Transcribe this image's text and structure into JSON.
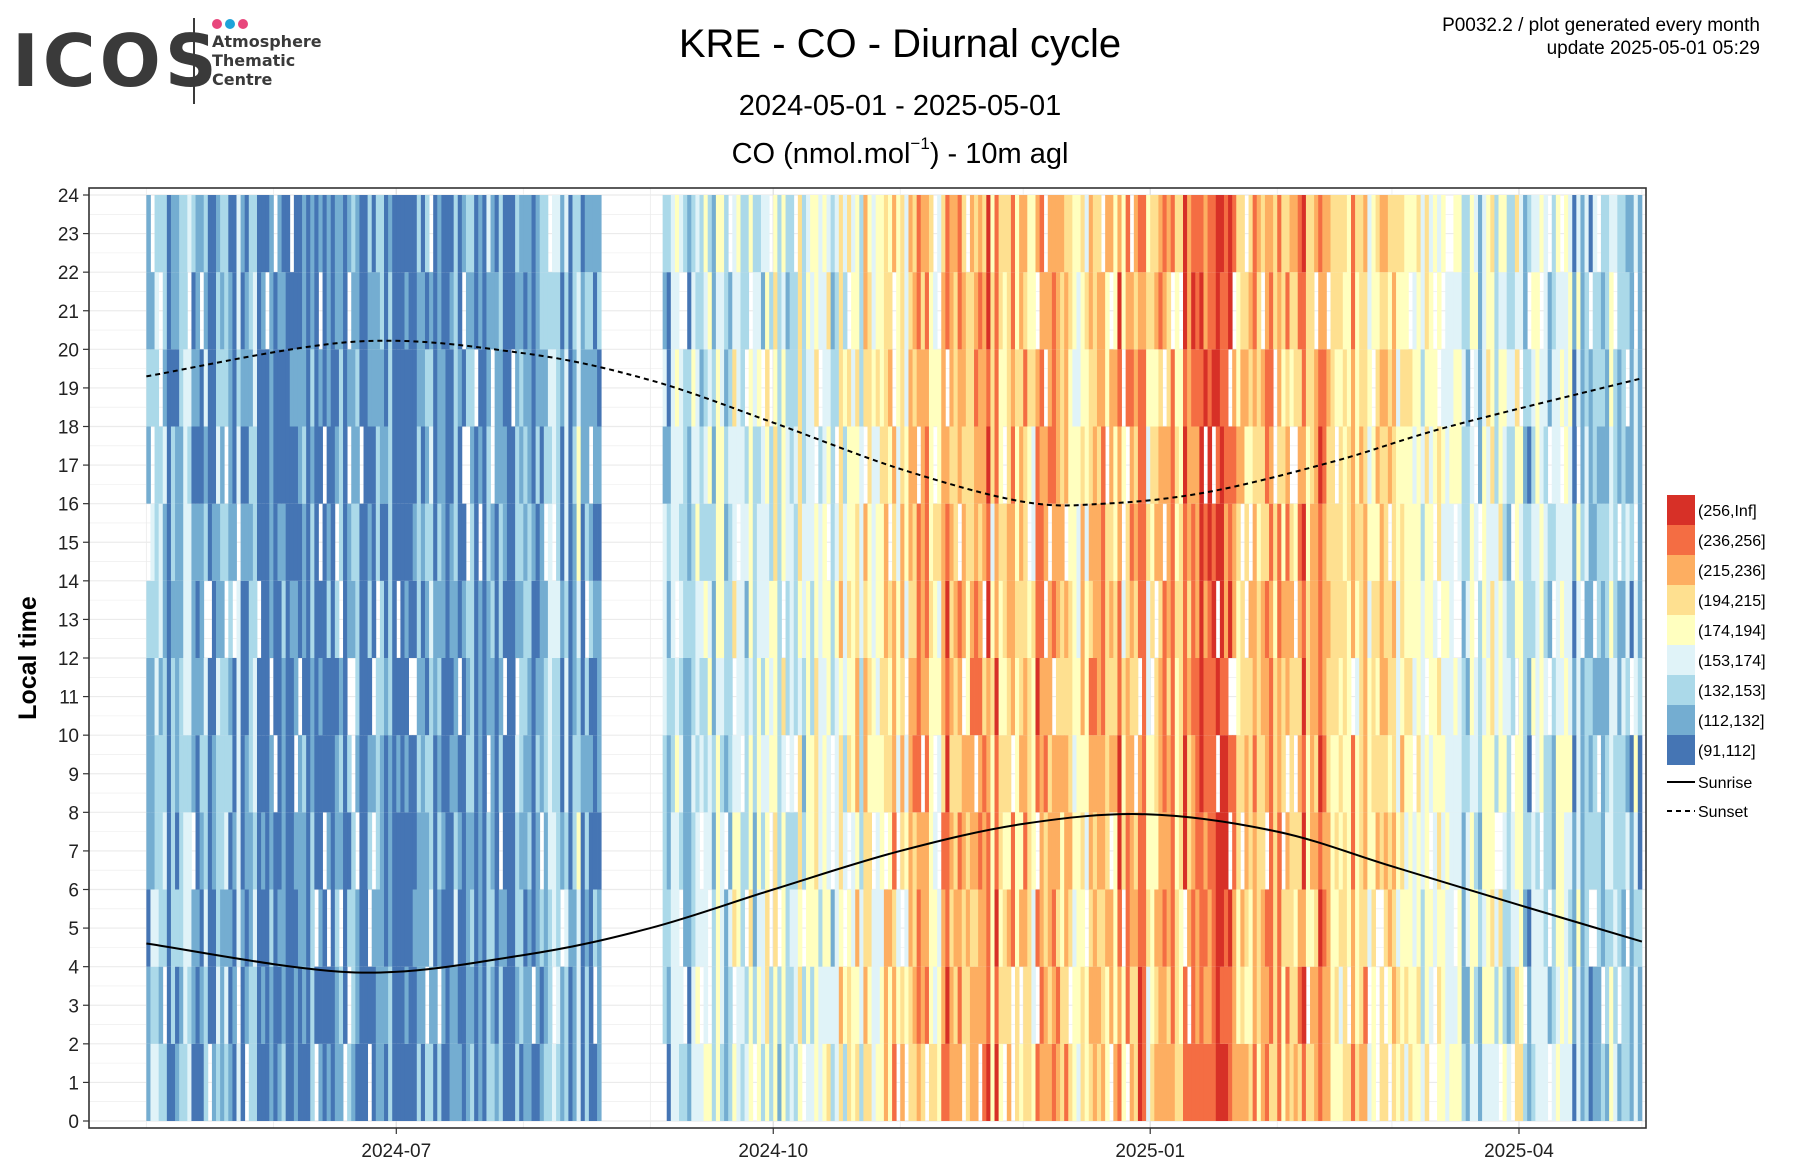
{
  "header": {
    "logo_text": "ICOS",
    "logo_sub": [
      "Atmosphere",
      "Thematic",
      "Centre"
    ],
    "logo_dot_colors": [
      "#e8467c",
      "#1fa3d9",
      "#e8467c"
    ],
    "meta_line1": "P0032.2 / plot generated every month",
    "meta_line2": "update  2025-05-01 05:29"
  },
  "chart_data": {
    "type": "heatmap",
    "title": "KRE - CO - Diurnal cycle",
    "period": "2024-05-01 - 2025-05-01",
    "subtitle_pre": "CO (nmol.mol",
    "subtitle_sup": "−1",
    "subtitle_post": ") - 10m agl",
    "ylabel": "Local time",
    "xlabel": "",
    "x_range": [
      "2024-05-01",
      "2025-05-01"
    ],
    "x_ticks": [
      "2024-07",
      "2024-10",
      "2025-01",
      "2025-04"
    ],
    "y_range": [
      0,
      24
    ],
    "y_ticks": [
      0,
      1,
      2,
      3,
      4,
      5,
      6,
      7,
      8,
      9,
      10,
      11,
      12,
      13,
      14,
      15,
      16,
      17,
      18,
      19,
      20,
      21,
      22,
      23,
      24
    ],
    "grid": true,
    "legend_position": "right",
    "missing_periods": [
      {
        "start": "2024-08-20",
        "end": "2024-09-04"
      }
    ],
    "bins": [
      {
        "label": "(256,Inf]",
        "color": "#d73027"
      },
      {
        "label": "(236,256]",
        "color": "#f46d43"
      },
      {
        "label": "(215,236]",
        "color": "#fdae61"
      },
      {
        "label": "(194,215]",
        "color": "#fee090"
      },
      {
        "label": "(174,194]",
        "color": "#ffffbf"
      },
      {
        "label": "(153,174]",
        "color": "#e0f3f8"
      },
      {
        "label": "(132,153]",
        "color": "#abd9e9"
      },
      {
        "label": "(112,132]",
        "color": "#74add1"
      },
      {
        "label": "(91,112]",
        "color": "#4575b4"
      }
    ],
    "monthly_level_bin": [
      {
        "month": "2024-05",
        "bin": 7.0
      },
      {
        "month": "2024-06",
        "bin": 7.6
      },
      {
        "month": "2024-07",
        "bin": 7.4
      },
      {
        "month": "2024-08",
        "bin": 6.6
      },
      {
        "month": "2024-09",
        "bin": 5.4
      },
      {
        "month": "2024-10",
        "bin": 4.6
      },
      {
        "month": "2024-11",
        "bin": 2.2
      },
      {
        "month": "2024-12",
        "bin": 3.0
      },
      {
        "month": "2025-01",
        "bin": 1.8
      },
      {
        "month": "2025-02",
        "bin": 2.4
      },
      {
        "month": "2025-03",
        "bin": 4.8
      },
      {
        "month": "2025-04",
        "bin": 5.9
      }
    ],
    "lines": [
      {
        "name": "Sunrise",
        "style": "solid",
        "points": [
          [
            "2024-05-01",
            4.6
          ],
          [
            "2024-06-21",
            3.85
          ],
          [
            "2024-08-01",
            4.3
          ],
          [
            "2024-09-01",
            5.0
          ],
          [
            "2024-10-01",
            6.0
          ],
          [
            "2024-11-01",
            7.0
          ],
          [
            "2024-12-01",
            7.7
          ],
          [
            "2024-12-31",
            7.95
          ],
          [
            "2025-02-01",
            7.5
          ],
          [
            "2025-03-01",
            6.6
          ],
          [
            "2025-04-01",
            5.6
          ],
          [
            "2025-05-01",
            4.65
          ]
        ]
      },
      {
        "name": "Sunset",
        "style": "dashed",
        "points": [
          [
            "2024-05-01",
            19.3
          ],
          [
            "2024-06-21",
            20.2
          ],
          [
            "2024-08-01",
            19.9
          ],
          [
            "2024-09-01",
            19.2
          ],
          [
            "2024-10-01",
            18.1
          ],
          [
            "2024-11-01",
            16.9
          ],
          [
            "2024-12-01",
            16.05
          ],
          [
            "2024-12-21",
            16.0
          ],
          [
            "2025-01-15",
            16.3
          ],
          [
            "2025-02-15",
            17.1
          ],
          [
            "2025-03-15",
            18.0
          ],
          [
            "2025-05-01",
            19.25
          ]
        ]
      }
    ]
  }
}
